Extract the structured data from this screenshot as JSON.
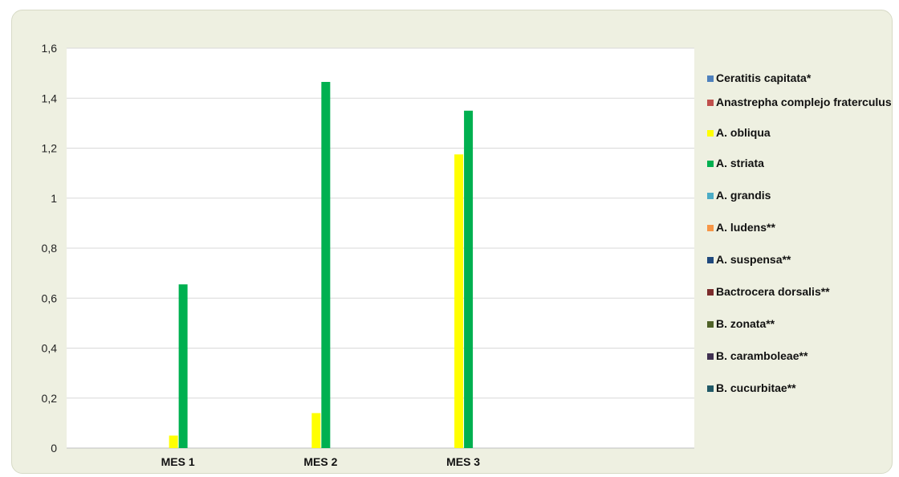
{
  "chart_data": {
    "type": "bar",
    "categories": [
      "MES 1",
      "MES 2",
      "MES 3"
    ],
    "y_ticks": [
      "0",
      "0,2",
      "0,4",
      "0,6",
      "0,8",
      "1",
      "1,2",
      "1,4",
      "1,6"
    ],
    "ylim": [
      0,
      1.6
    ],
    "grid": true,
    "legend_position": "right",
    "series": [
      {
        "name": "Ceratitis capitata*",
        "color": "#4f81bd",
        "values": [
          0,
          0,
          0
        ]
      },
      {
        "name": "Anastrepha complejo fraterculus",
        "color": "#c0504d",
        "values": [
          0,
          0,
          0
        ]
      },
      {
        "name": "A. obliqua",
        "color": "#ffff00",
        "values": [
          0.05,
          0.14,
          1.175
        ]
      },
      {
        "name": "A. striata",
        "color": "#00b050",
        "values": [
          0.655,
          1.465,
          1.35
        ]
      },
      {
        "name": "A. grandis",
        "color": "#4bacc6",
        "values": [
          0,
          0,
          0
        ]
      },
      {
        "name": "A. ludens**",
        "color": "#f79646",
        "values": [
          0,
          0,
          0
        ]
      },
      {
        "name": "A. suspensa**",
        "color": "#1f497d",
        "values": [
          0,
          0,
          0
        ]
      },
      {
        "name": "Bactrocera dorsalis**",
        "color": "#7b2c2c",
        "values": [
          0,
          0,
          0
        ]
      },
      {
        "name": "B. zonata**",
        "color": "#4f6228",
        "values": [
          0,
          0,
          0
        ]
      },
      {
        "name": "B. caramboleae**",
        "color": "#403151",
        "values": [
          0,
          0,
          0
        ]
      },
      {
        "name": "B. cucurbitae**",
        "color": "#215967",
        "values": [
          0,
          0,
          0
        ]
      }
    ]
  }
}
